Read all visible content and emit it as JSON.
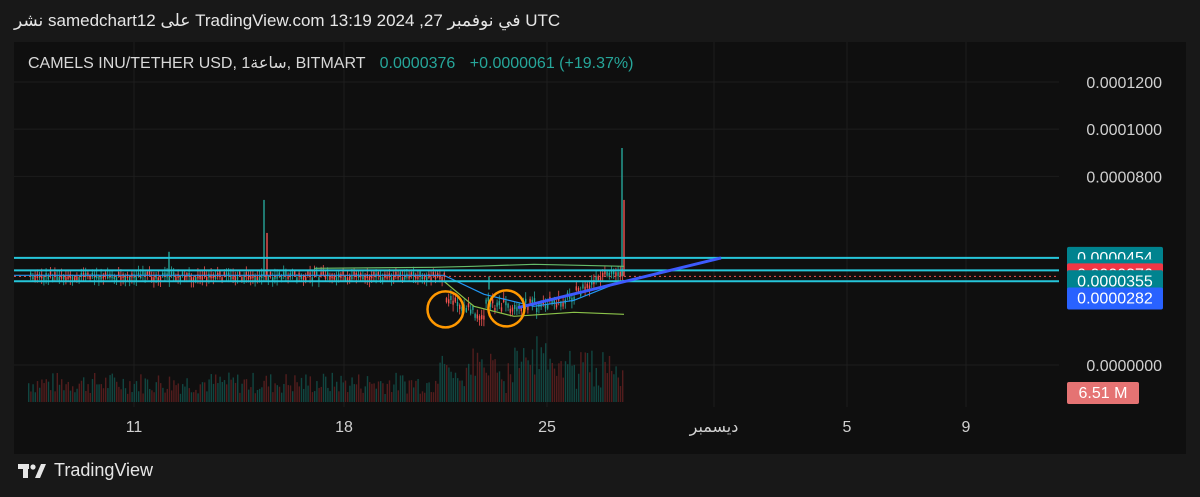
{
  "header": {
    "publish_line": "نشر samedchart12 على TradingView.com في نوفمبر 27, 2024 13:19 UTC"
  },
  "legend": {
    "symbol": "CAMELS INU/TETHER USD, 1ساعة, BITMART",
    "last": "0.0000376",
    "change": "+0.0000061 (+19.37%)"
  },
  "colors": {
    "background": "#0f0f0f",
    "bull": "#26a69a",
    "bear": "#ef5350",
    "level_line": "#26c6da",
    "trendline": "#3d5afe",
    "circle": "#ff9800"
  },
  "chart_data": {
    "type": "candlestick",
    "symbol": "CAMELS INU/TETHER USD",
    "interval": "1ساعة",
    "exchange": "BITMART",
    "y_axis": {
      "ticks": [
        "0.0001200",
        "0.0001000",
        "0.0000800",
        "0.0000000"
      ],
      "tick_values": [
        0.00012,
        0.0001,
        8e-05,
        0.0
      ]
    },
    "x_axis": {
      "ticks": [
        "11",
        "18",
        "25",
        "ديسمبر",
        "5",
        "9"
      ]
    },
    "price_labels": [
      {
        "text": "0.0000454",
        "value": 4.54e-05,
        "color": "#00838f"
      },
      {
        "text": "0.0000401",
        "value": 4.01e-05,
        "color": "#00838f"
      },
      {
        "text": "0.0000376",
        "sub": "40:26",
        "value": 3.76e-05,
        "color": "#f23645"
      },
      {
        "text": "0.0000355",
        "value": 3.55e-05,
        "color": "#00838f"
      },
      {
        "text": "0.0000282",
        "value": 2.82e-05,
        "color": "#2962ff"
      }
    ],
    "volume_label": "6.51 M",
    "price_range": {
      "last": 3.76e-05,
      "high": 9.2e-05,
      "low": 1.8e-05
    },
    "horizontal_levels": [
      4.54e-05,
      4.01e-05,
      3.55e-05
    ],
    "trendline": {
      "from": {
        "date": "Nov 24",
        "price": 2.43e-05
      },
      "to": {
        "date": "Dec 1",
        "price": 4.54e-05
      }
    },
    "circled_areas": [
      "Nov 21",
      "Nov 24"
    ],
    "grid": true
  }
}
